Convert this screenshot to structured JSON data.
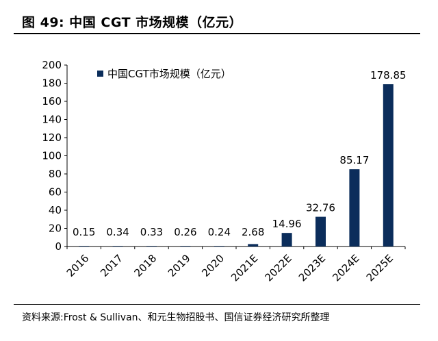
{
  "header": {
    "title": "图 49:  中国 CGT 市场规模（亿元）"
  },
  "chart_data": {
    "type": "bar",
    "categories": [
      "2016",
      "2017",
      "2018",
      "2019",
      "2020",
      "2021E",
      "2022E",
      "2023E",
      "2024E",
      "2025E"
    ],
    "series": [
      {
        "name": "中国CGT市场规模（亿元）",
        "values": [
          0.15,
          0.34,
          0.33,
          0.26,
          0.24,
          2.68,
          14.96,
          32.76,
          85.17,
          178.85
        ]
      }
    ],
    "data_labels": [
      "0.15",
      "0.34",
      "0.33",
      "0.26",
      "0.24",
      "2.68",
      "14.96",
      "32.76",
      "85.17",
      "178.85"
    ],
    "ylim": [
      0,
      200
    ],
    "yticks": [
      0,
      20,
      40,
      60,
      80,
      100,
      120,
      140,
      160,
      180,
      200
    ],
    "bar_color": "#0b2d5b",
    "legend_position": "top-left",
    "grid": false
  },
  "footer": {
    "source": "资料来源:Frost & Sullivan、和元生物招股书、国信证券经济研究所整理"
  }
}
